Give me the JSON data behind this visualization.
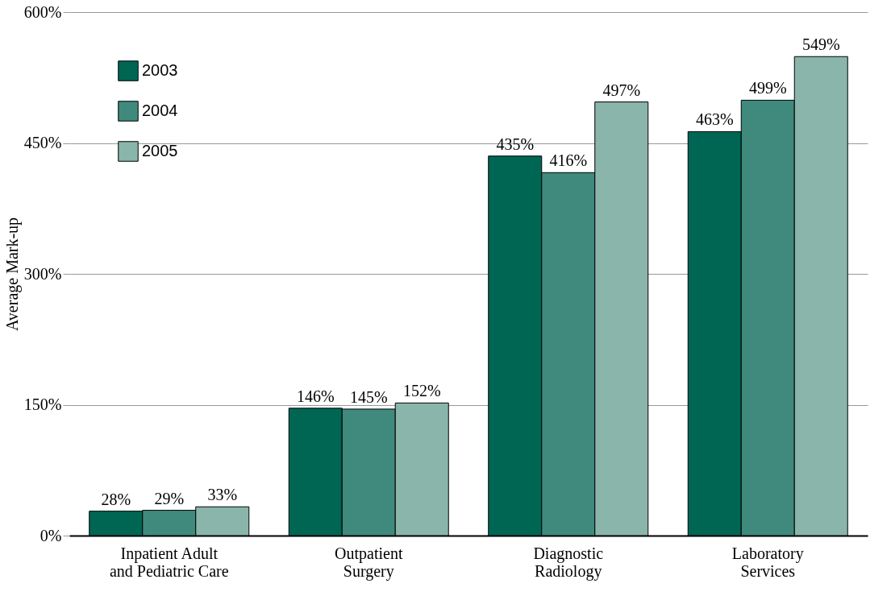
{
  "chart_data": {
    "type": "bar",
    "ylabel": "Average Mark-up",
    "categories": [
      "Inpatient Adult\nand Pediatric Care",
      "Outpatient\nSurgery",
      "Diagnostic\nRadiology",
      "Laboratory\nServices"
    ],
    "series": [
      {
        "name": "2003",
        "color": "#006654",
        "values": [
          28,
          146,
          435,
          463
        ],
        "value_labels": [
          "28%",
          "146%",
          "435%",
          "463%"
        ]
      },
      {
        "name": "2004",
        "color": "#3f8a7c",
        "values": [
          29,
          145,
          416,
          499
        ],
        "value_labels": [
          "29%",
          "145%",
          "416%",
          "499%"
        ]
      },
      {
        "name": "2005",
        "color": "#8ab5aa",
        "values": [
          33,
          152,
          497,
          549
        ],
        "value_labels": [
          "33%",
          "152%",
          "497%",
          "549%"
        ]
      }
    ],
    "ylim": [
      0,
      600
    ],
    "yticks": [
      {
        "value": 0,
        "label": "0%"
      },
      {
        "value": 150,
        "label": "150%"
      },
      {
        "value": 300,
        "label": "300%"
      },
      {
        "value": 450,
        "label": "450%"
      },
      {
        "value": 600,
        "label": "600%"
      }
    ],
    "grid": "y",
    "legend": "top left"
  }
}
